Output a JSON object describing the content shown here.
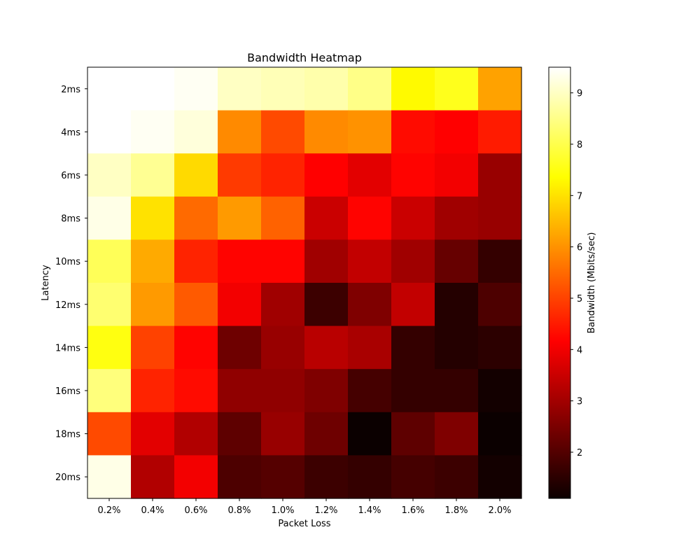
{
  "chart_data": {
    "type": "heatmap",
    "title": "Bandwidth Heatmap",
    "xlabel": "Packet Loss",
    "ylabel": "Latency",
    "colorbar_label": "Bandwidth (Mbits/sec)",
    "colormap": "hot",
    "x_categories": [
      "0.2%",
      "0.4%",
      "0.6%",
      "0.8%",
      "1.0%",
      "1.2%",
      "1.4%",
      "1.6%",
      "1.8%",
      "2.0%"
    ],
    "y_categories": [
      "2ms",
      "4ms",
      "6ms",
      "8ms",
      "10ms",
      "12ms",
      "14ms",
      "16ms",
      "18ms",
      "20ms"
    ],
    "values": [
      [
        9.5,
        9.5,
        9.4,
        9.0,
        8.9,
        8.8,
        8.5,
        7.3,
        7.6,
        6.2
      ],
      [
        9.5,
        9.4,
        9.2,
        5.9,
        5.1,
        5.9,
        6.0,
        4.3,
        4.1,
        4.5
      ],
      [
        9.0,
        8.6,
        6.9,
        4.9,
        4.6,
        4.1,
        3.7,
        4.2,
        3.9,
        2.8
      ],
      [
        9.3,
        7.0,
        5.5,
        6.1,
        5.4,
        3.4,
        4.2,
        3.4,
        2.9,
        2.8
      ],
      [
        8.1,
        6.3,
        4.6,
        4.2,
        4.2,
        2.9,
        3.3,
        2.9,
        2.2,
        1.6
      ],
      [
        8.3,
        6.1,
        5.3,
        3.9,
        2.9,
        1.7,
        2.5,
        3.3,
        1.4,
        1.9
      ],
      [
        7.5,
        5.0,
        4.2,
        2.3,
        2.8,
        3.2,
        3.0,
        1.6,
        1.4,
        1.5
      ],
      [
        8.4,
        4.6,
        4.3,
        2.7,
        2.7,
        2.5,
        1.8,
        1.6,
        1.6,
        1.2
      ],
      [
        5.1,
        3.7,
        3.1,
        2.1,
        2.8,
        2.3,
        1.1,
        2.1,
        2.5,
        1.1
      ],
      [
        9.3,
        3.1,
        3.9,
        1.9,
        2.0,
        1.7,
        1.6,
        1.8,
        1.7,
        1.2
      ]
    ],
    "vmin": 1.1,
    "vmax": 9.5,
    "colorbar_ticks": [
      2,
      3,
      4,
      5,
      6,
      7,
      8,
      9
    ]
  }
}
